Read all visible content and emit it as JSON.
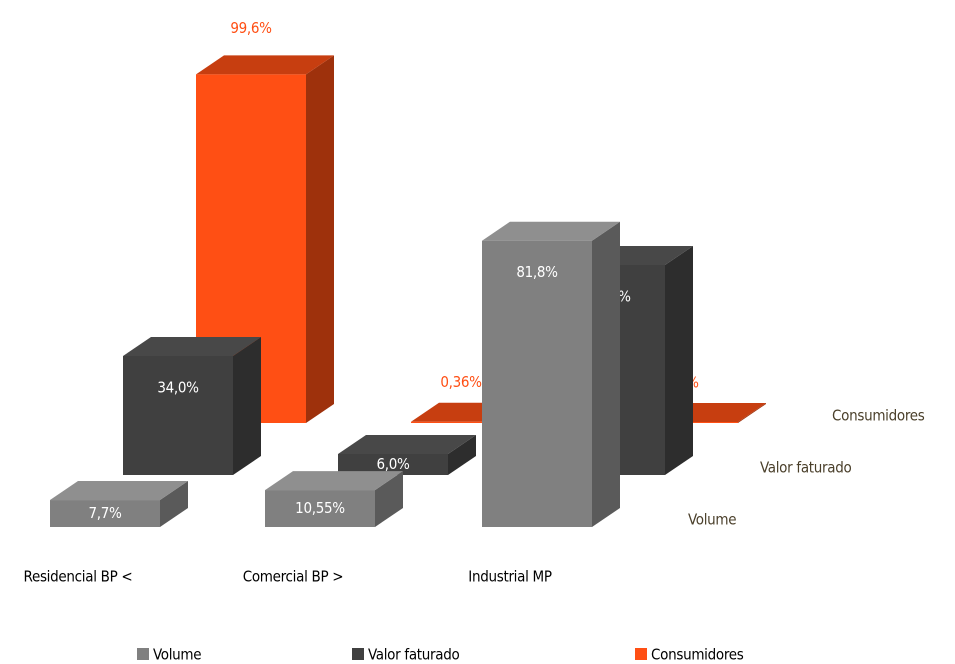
{
  "chart_data": {
    "type": "bar3d",
    "categories": [
      "Residencial BP <",
      "Comercial  BP >",
      "Industrial  MP"
    ],
    "ylim": [
      0,
      100
    ],
    "series": [
      {
        "name": "Volume",
        "color": "#808080",
        "values": [
          7.7,
          10.55,
          81.8
        ],
        "value_labels": [
          "7,7%",
          "10,55%",
          "81,8%"
        ]
      },
      {
        "name": "Valor faturado",
        "color": "#404040",
        "values": [
          34.0,
          6.0,
          60.0
        ],
        "value_labels": [
          "34,0%",
          "6,0%",
          "60,0%"
        ]
      },
      {
        "name": "Consumidores",
        "color": "#ff4f14",
        "values": [
          99.6,
          0.36,
          0.06
        ],
        "value_labels": [
          "99,6%",
          "0,36%",
          "0,06%"
        ]
      }
    ]
  }
}
